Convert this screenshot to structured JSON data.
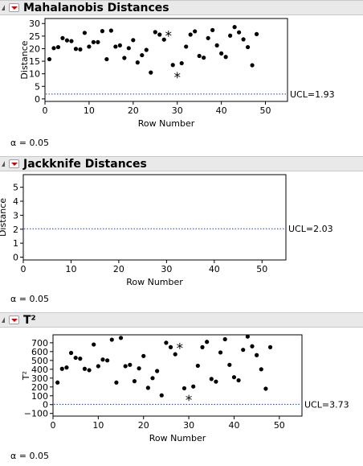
{
  "chart_data": [
    {
      "type": "scatter",
      "title": "Mahalanobis Distances",
      "xlabel": "Row Number",
      "ylabel": "Distance",
      "xlim": [
        0,
        55
      ],
      "ylim": [
        -1,
        32
      ],
      "xticks": [
        0,
        10,
        20,
        30,
        40,
        50
      ],
      "yticks": [
        0,
        5,
        10,
        15,
        20,
        25,
        30
      ],
      "ucl": 1.93,
      "ucl_label": "UCL=1.93",
      "alpha_label": "α = 0.05",
      "points": [
        {
          "x": 1,
          "y": 15.8
        },
        {
          "x": 2,
          "y": 20.2
        },
        {
          "x": 3,
          "y": 20.6
        },
        {
          "x": 4,
          "y": 24.2
        },
        {
          "x": 5,
          "y": 23.3
        },
        {
          "x": 6,
          "y": 23.0
        },
        {
          "x": 7,
          "y": 19.9
        },
        {
          "x": 8,
          "y": 19.7
        },
        {
          "x": 9,
          "y": 26.3
        },
        {
          "x": 10,
          "y": 20.8
        },
        {
          "x": 11,
          "y": 22.6
        },
        {
          "x": 12,
          "y": 22.6
        },
        {
          "x": 13,
          "y": 27.0
        },
        {
          "x": 14,
          "y": 15.8
        },
        {
          "x": 15,
          "y": 27.2
        },
        {
          "x": 16,
          "y": 20.8
        },
        {
          "x": 17,
          "y": 21.3
        },
        {
          "x": 18,
          "y": 16.3
        },
        {
          "x": 19,
          "y": 20.2
        },
        {
          "x": 20,
          "y": 23.4
        },
        {
          "x": 21,
          "y": 14.5
        },
        {
          "x": 22,
          "y": 17.4
        },
        {
          "x": 23,
          "y": 19.5
        },
        {
          "x": 24,
          "y": 10.5
        },
        {
          "x": 25,
          "y": 26.6
        },
        {
          "x": 26,
          "y": 25.6
        },
        {
          "x": 27,
          "y": 23.6
        },
        {
          "x": 28,
          "y": 26.1,
          "marker": "star"
        },
        {
          "x": 29,
          "y": 13.5
        },
        {
          "x": 30,
          "y": 9.5,
          "marker": "star"
        },
        {
          "x": 31,
          "y": 14.2
        },
        {
          "x": 32,
          "y": 20.8
        },
        {
          "x": 33,
          "y": 25.6
        },
        {
          "x": 34,
          "y": 26.9
        },
        {
          "x": 35,
          "y": 17.1
        },
        {
          "x": 36,
          "y": 16.4
        },
        {
          "x": 37,
          "y": 24.2
        },
        {
          "x": 38,
          "y": 27.4
        },
        {
          "x": 39,
          "y": 21.3
        },
        {
          "x": 40,
          "y": 18.1
        },
        {
          "x": 41,
          "y": 16.7
        },
        {
          "x": 42,
          "y": 25.2
        },
        {
          "x": 43,
          "y": 28.6
        },
        {
          "x": 44,
          "y": 26.5
        },
        {
          "x": 45,
          "y": 23.7
        },
        {
          "x": 46,
          "y": 20.6
        },
        {
          "x": 47,
          "y": 13.4
        },
        {
          "x": 48,
          "y": 25.8
        }
      ]
    },
    {
      "type": "scatter",
      "title": "Jackknife Distances",
      "xlabel": "Row Number",
      "ylabel": "Distance",
      "xlim": [
        0,
        55
      ],
      "ylim": [
        -0.2,
        5.9
      ],
      "xticks": [
        0,
        10,
        20,
        30,
        40,
        50
      ],
      "yticks": [
        0,
        1,
        2,
        3,
        4,
        5
      ],
      "ucl": 2.03,
      "ucl_label": "UCL=2.03",
      "alpha_label": "α = 0.05",
      "points": []
    },
    {
      "type": "scatter",
      "title": "T²",
      "xlabel": "Row Number",
      "ylabel": "T²",
      "xlim": [
        0,
        55
      ],
      "ylim": [
        -130,
        790
      ],
      "xticks": [
        0,
        10,
        20,
        30,
        40,
        50
      ],
      "yticks": [
        -100,
        0,
        100,
        200,
        300,
        400,
        500,
        600,
        700
      ],
      "ucl": 3.73,
      "ucl_label": "UCL=3.73",
      "alpha_label": "α = 0.05",
      "points": [
        {
          "x": 1,
          "y": 250
        },
        {
          "x": 2,
          "y": 405
        },
        {
          "x": 3,
          "y": 420
        },
        {
          "x": 4,
          "y": 585
        },
        {
          "x": 5,
          "y": 530
        },
        {
          "x": 6,
          "y": 520
        },
        {
          "x": 7,
          "y": 405
        },
        {
          "x": 8,
          "y": 390
        },
        {
          "x": 9,
          "y": 680
        },
        {
          "x": 10,
          "y": 435
        },
        {
          "x": 11,
          "y": 510
        },
        {
          "x": 12,
          "y": 500
        },
        {
          "x": 13,
          "y": 735
        },
        {
          "x": 14,
          "y": 250
        },
        {
          "x": 15,
          "y": 755
        },
        {
          "x": 16,
          "y": 435
        },
        {
          "x": 17,
          "y": 450
        },
        {
          "x": 18,
          "y": 265
        },
        {
          "x": 19,
          "y": 410
        },
        {
          "x": 20,
          "y": 550
        },
        {
          "x": 21,
          "y": 190
        },
        {
          "x": 22,
          "y": 300
        },
        {
          "x": 23,
          "y": 380
        },
        {
          "x": 24,
          "y": 105
        },
        {
          "x": 25,
          "y": 700
        },
        {
          "x": 26,
          "y": 650
        },
        {
          "x": 27,
          "y": 570
        },
        {
          "x": 28,
          "y": 665,
          "marker": "star"
        },
        {
          "x": 29,
          "y": 185
        },
        {
          "x": 30,
          "y": 80,
          "marker": "star"
        },
        {
          "x": 31,
          "y": 205
        },
        {
          "x": 32,
          "y": 440
        },
        {
          "x": 33,
          "y": 650
        },
        {
          "x": 34,
          "y": 710
        },
        {
          "x": 35,
          "y": 290
        },
        {
          "x": 36,
          "y": 260
        },
        {
          "x": 37,
          "y": 590
        },
        {
          "x": 38,
          "y": 740
        },
        {
          "x": 39,
          "y": 450
        },
        {
          "x": 40,
          "y": 310
        },
        {
          "x": 41,
          "y": 275
        },
        {
          "x": 42,
          "y": 620
        },
        {
          "x": 43,
          "y": 770
        },
        {
          "x": 44,
          "y": 660
        },
        {
          "x": 45,
          "y": 560
        },
        {
          "x": 46,
          "y": 400
        },
        {
          "x": 47,
          "y": 180
        },
        {
          "x": 48,
          "y": 650
        }
      ]
    }
  ]
}
